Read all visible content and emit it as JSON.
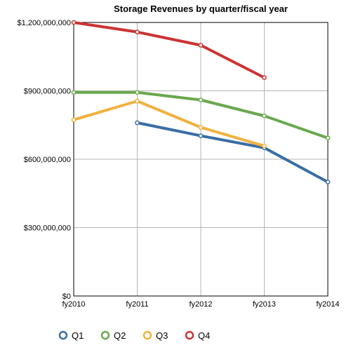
{
  "chart_data": {
    "type": "line",
    "title": "Storage Revenues by quarter/fiscal year",
    "xlabel": "",
    "ylabel": "",
    "categories": [
      "fy2010",
      "fy2011",
      "fy2012",
      "fy2013",
      "fy2014"
    ],
    "ylim": [
      0,
      1200000000
    ],
    "yticks": [
      0,
      300000000,
      600000000,
      900000000,
      1200000000
    ],
    "ytick_labels": [
      "$0",
      "$300,000,000",
      "$600,000,000",
      "$900,000,000",
      "$1,200,000,000"
    ],
    "grid": true,
    "legend_position": "bottom-left",
    "series": [
      {
        "name": "Q1",
        "color": "#3a6ea5",
        "values": [
          null,
          760000000,
          703000000,
          650000000,
          500000000
        ]
      },
      {
        "name": "Q2",
        "color": "#6aa84f",
        "values": [
          893000000,
          893000000,
          860000000,
          790000000,
          693000000
        ]
      },
      {
        "name": "Q3",
        "color": "#f1b13d",
        "values": [
          773000000,
          855000000,
          740000000,
          658000000,
          null
        ]
      },
      {
        "name": "Q4",
        "color": "#cc3333",
        "values": [
          1200000000,
          1158000000,
          1100000000,
          958000000,
          null
        ]
      }
    ]
  }
}
